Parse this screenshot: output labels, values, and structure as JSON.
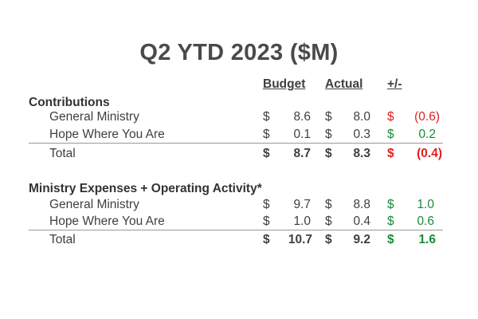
{
  "title": "Q2 YTD 2023 ($M)",
  "headers": {
    "budget": "Budget",
    "actual": "Actual",
    "variance": "+/-"
  },
  "currency": "$",
  "sections": [
    {
      "name": "Contributions",
      "rows": [
        {
          "label": "General Ministry",
          "budget": "8.6",
          "actual": "8.0",
          "variance": "(0.6)",
          "variance_status": "negative"
        },
        {
          "label": "Hope Where You Are",
          "budget": "0.1",
          "actual": "0.3",
          "variance": "0.2",
          "variance_status": "positive"
        }
      ],
      "total": {
        "label": "Total",
        "budget": "8.7",
        "actual": "8.3",
        "variance": "(0.4)",
        "variance_status": "negative"
      }
    },
    {
      "name": "Ministry Expenses + Operating Activity*",
      "rows": [
        {
          "label": "General Ministry",
          "budget": "9.7",
          "actual": "8.8",
          "variance": "1.0",
          "variance_status": "positive"
        },
        {
          "label": "Hope Where You Are",
          "budget": "1.0",
          "actual": "0.4",
          "variance": "0.6",
          "variance_status": "positive"
        }
      ],
      "total": {
        "label": "Total",
        "budget": "10.7",
        "actual": "9.2",
        "variance": "1.6",
        "variance_status": "positive"
      }
    }
  ],
  "colors": {
    "negative": "#e02020",
    "positive": "#1a8a3a",
    "text": "#3f3f3f"
  }
}
